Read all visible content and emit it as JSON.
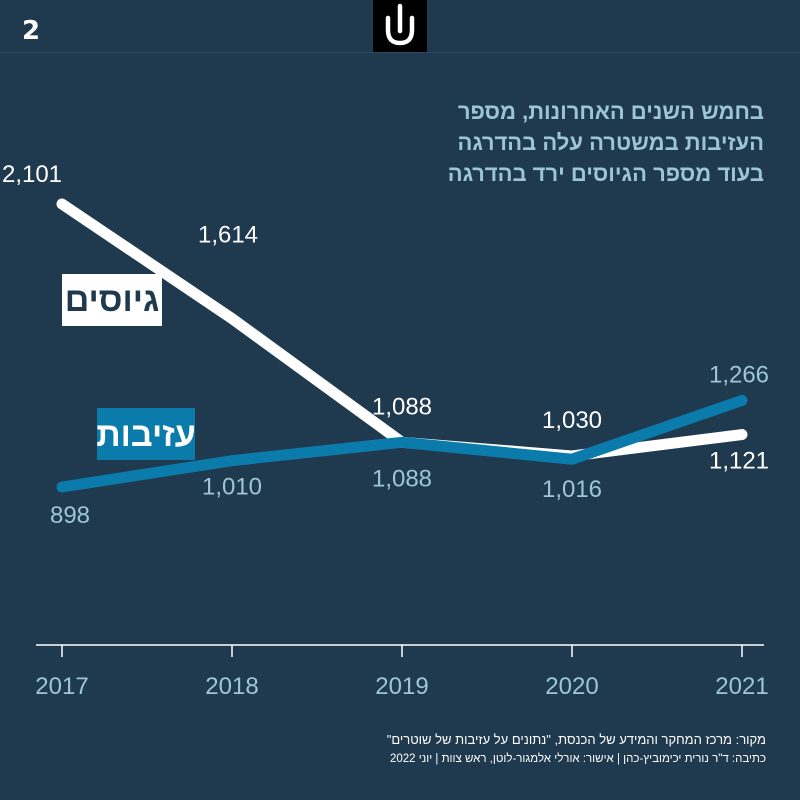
{
  "page": {
    "number": "2"
  },
  "logo": {
    "name": "shomrim-logo"
  },
  "headline": {
    "lines": [
      "בחמש השנים האחרונות, מספר",
      "העזיבות במשטרה עלה בהדרגה",
      "בעוד מספר הגיוסים ירד בהדרגה"
    ]
  },
  "colors": {
    "background": "#1f3a4f",
    "recruits": "#ffffff",
    "departures": "#0a7bab",
    "departures_label": "#9cc6d6",
    "axis": "#ffffff",
    "tick_text": "#9cc6d6"
  },
  "chart_data": {
    "type": "line",
    "title": "בחמש השנים האחרונות, מספר העזיבות במשטרה עלה בהדרגה בעוד מספר הגיוסים ירד בהדרגה",
    "xlabel": "",
    "ylabel": "",
    "categories": [
      "2017",
      "2018",
      "2019",
      "2020",
      "2021"
    ],
    "ylim": [
      0,
      2300
    ],
    "grid": false,
    "series": [
      {
        "key": "recruits",
        "name": "גיוסים",
        "values": [
          2101,
          1614,
          1088,
          1030,
          1121
        ],
        "labels": [
          "2,101",
          "1,614",
          "1,088",
          "1,030",
          "1,121"
        ]
      },
      {
        "key": "departures",
        "name": "עזיבות",
        "values": [
          898,
          1010,
          1088,
          1016,
          1266
        ],
        "labels": [
          "898",
          "1,010",
          "1,088",
          "1,016",
          "1,266"
        ]
      }
    ]
  },
  "footer": {
    "source": "מקור: מרכז המחקר והמידע של הכנסת, \"נתונים על עזיבות של שוטרים\"",
    "credits": "כתיבה: ד\"ר נורית יכימוביץ-כהן | אישור: אורלי אלמגור-לוטן, ראש צוות | יוני 2022"
  }
}
